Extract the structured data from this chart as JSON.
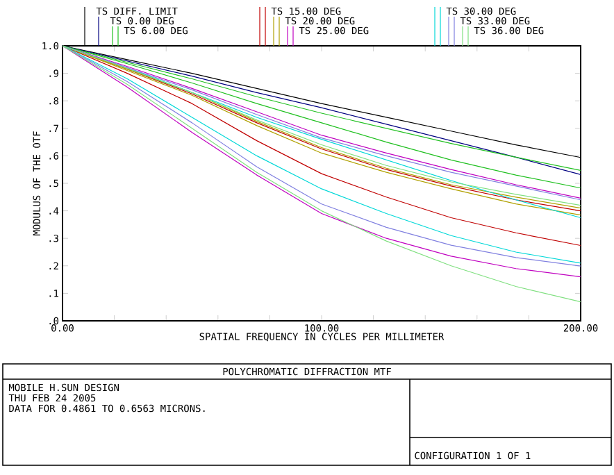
{
  "chart_data": {
    "type": "line",
    "title": "POLYCHROMATIC DIFFRACTION MTF",
    "xlabel": "SPATIAL FREQUENCY IN CYCLES PER MILLIMETER",
    "ylabel": "MODULUS OF THE OTF",
    "annotations": [
      "MOBILE H.SUN DESIGN",
      "THU FEB 24 2005",
      "DATA FOR 0.4861 TO 0.6563 MICRONS.",
      "CONFIGURATION 1 OF 1"
    ],
    "x": [
      0,
      25,
      50,
      75,
      100,
      125,
      150,
      175,
      200
    ],
    "series": [
      {
        "name": "TS DIFF. LIMIT",
        "color": "#000000",
        "values": [
          1,
          0.95,
          0.9,
          0.845,
          0.79,
          0.74,
          0.69,
          0.64,
          0.594
        ]
      },
      {
        "name": "TS 0.00 DEG",
        "color": "#000080",
        "values": [
          1,
          0.945,
          0.89,
          0.83,
          0.775,
          0.715,
          0.655,
          0.595,
          0.532
        ]
      },
      {
        "name": "TS 6.00 DEG",
        "color": "#20c020",
        "values": [
          1,
          0.94,
          0.88,
          0.815,
          0.755,
          0.7,
          0.645,
          0.595,
          0.547
        ]
      },
      {
        "color": "#20c020",
        "values": [
          1,
          0.935,
          0.865,
          0.79,
          0.72,
          0.65,
          0.585,
          0.53,
          0.483
        ]
      },
      {
        "name": "TS 15.00 DEG",
        "color": "#c00000",
        "values": [
          1,
          0.915,
          0.825,
          0.72,
          0.625,
          0.55,
          0.49,
          0.44,
          0.4
        ]
      },
      {
        "color": "#c00000",
        "values": [
          1,
          0.9,
          0.79,
          0.655,
          0.535,
          0.45,
          0.375,
          0.32,
          0.274
        ]
      },
      {
        "name": "TS 20.00 DEG",
        "color": "#b0a000",
        "values": [
          1,
          0.91,
          0.82,
          0.71,
          0.61,
          0.54,
          0.48,
          0.425,
          0.385
        ]
      },
      {
        "color": "#b0a000",
        "values": [
          1,
          0.915,
          0.83,
          0.725,
          0.63,
          0.555,
          0.495,
          0.45,
          0.41
        ]
      },
      {
        "name": "TS 25.00 DEG",
        "color": "#c000c0",
        "values": [
          1,
          0.925,
          0.845,
          0.76,
          0.675,
          0.61,
          0.55,
          0.495,
          0.446
        ]
      },
      {
        "color": "#c000c0",
        "values": [
          1,
          0.85,
          0.685,
          0.53,
          0.39,
          0.3,
          0.235,
          0.19,
          0.16
        ]
      },
      {
        "name": "TS 30.00 DEG",
        "color": "#00d8d8",
        "values": [
          1,
          0.92,
          0.83,
          0.74,
          0.66,
          0.585,
          0.51,
          0.44,
          0.375
        ]
      },
      {
        "color": "#00d8d8",
        "values": [
          1,
          0.88,
          0.74,
          0.6,
          0.48,
          0.39,
          0.31,
          0.25,
          0.21
        ]
      },
      {
        "name": "TS 33.00 DEG",
        "color": "#8080e0",
        "values": [
          1,
          0.92,
          0.84,
          0.75,
          0.665,
          0.6,
          0.54,
          0.49,
          0.44
        ]
      },
      {
        "color": "#8080e0",
        "values": [
          1,
          0.87,
          0.72,
          0.56,
          0.425,
          0.34,
          0.275,
          0.23,
          0.199
        ]
      },
      {
        "name": "TS 36.00 DEG",
        "color": "#80e080",
        "values": [
          1,
          0.918,
          0.83,
          0.73,
          0.64,
          0.565,
          0.505,
          0.46,
          0.42
        ]
      },
      {
        "color": "#80e080",
        "values": [
          1,
          0.86,
          0.7,
          0.54,
          0.4,
          0.29,
          0.2,
          0.125,
          0.069
        ]
      }
    ],
    "xlim": [
      0,
      200
    ],
    "ylim": [
      0,
      1
    ],
    "xticks": [
      {
        "value": 0,
        "label": "0.00"
      },
      {
        "value": 20,
        "label": null
      },
      {
        "value": 40,
        "label": null
      },
      {
        "value": 60,
        "label": null
      },
      {
        "value": 80,
        "label": null
      },
      {
        "value": 100,
        "label": "100.00"
      },
      {
        "value": 120,
        "label": null
      },
      {
        "value": 140,
        "label": null
      },
      {
        "value": 160,
        "label": null
      },
      {
        "value": 180,
        "label": null
      },
      {
        "value": 200,
        "label": "200.00"
      }
    ],
    "yticks": [
      {
        "value": 0,
        "label": ".0"
      },
      {
        "value": 0.1,
        "label": ".1"
      },
      {
        "value": 0.2,
        "label": ".2"
      },
      {
        "value": 0.3,
        "label": ".3"
      },
      {
        "value": 0.4,
        "label": ".4"
      },
      {
        "value": 0.5,
        "label": ".5"
      },
      {
        "value": 0.6,
        "label": ".6"
      },
      {
        "value": 0.7,
        "label": ".7"
      },
      {
        "value": 0.8,
        "label": ".8"
      },
      {
        "value": 0.9,
        "label": ".9"
      },
      {
        "value": 1,
        "label": "1.0"
      }
    ],
    "legend": "top"
  }
}
